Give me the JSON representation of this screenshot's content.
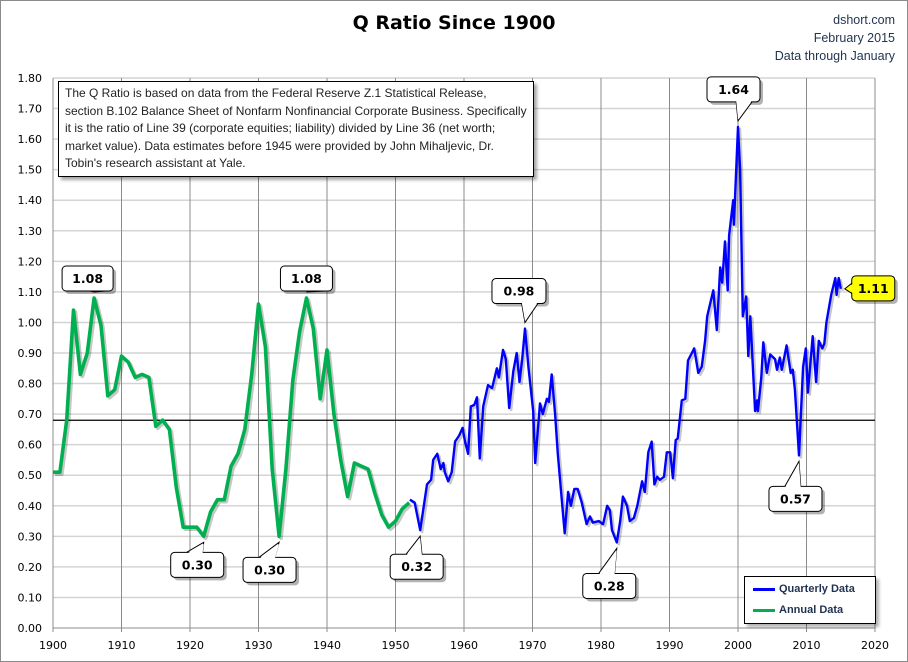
{
  "header": {
    "title": "Q Ratio Since 1900",
    "source": "dshort.com",
    "date": "February 2015",
    "data_through": "Data through January"
  },
  "note": "The Q Ratio is based on data from the Federal Reserve Z.1 Statistical Release, section B.102 Balance Sheet of Nonfarm Nonfinancial Corporate Business. Specifically it is the ratio of Line 39  (corporate equities; liability) divided by Line 36 (net worth; market value).  Data estimates before 1945 were provided by John Mihaljevic, Dr. Tobin's research assistant at Yale.",
  "chart_data": {
    "type": "line",
    "title": "Q Ratio Since 1900",
    "xlim": [
      1900,
      2020
    ],
    "ylim": [
      0,
      1.8
    ],
    "x_ticks": [
      "1900",
      "1910",
      "1920",
      "1930",
      "1940",
      "1950",
      "1960",
      "1970",
      "1980",
      "1990",
      "2000",
      "2010",
      "2020"
    ],
    "y_ticks": [
      "0.00",
      "0.10",
      "0.20",
      "0.30",
      "0.40",
      "0.50",
      "0.60",
      "0.70",
      "0.80",
      "0.90",
      "1.00",
      "1.10",
      "1.20",
      "1.30",
      "1.40",
      "1.50",
      "1.60",
      "1.70",
      "1.80"
    ],
    "grid": true,
    "legend_position": "bottom-right",
    "mean_line": 0.68,
    "series": [
      {
        "name": "Quarterly Data",
        "color": "#0000ff",
        "points": [
          [
            1952.1,
            0.42
          ],
          [
            1952.8,
            0.41
          ],
          [
            1953.6,
            0.32
          ],
          [
            1954.6,
            0.47
          ],
          [
            1955.2,
            0.485
          ],
          [
            1955.5,
            0.55
          ],
          [
            1956.1,
            0.57
          ],
          [
            1956.6,
            0.52
          ],
          [
            1957,
            0.54
          ],
          [
            1957.2,
            0.51
          ],
          [
            1957.7,
            0.48
          ],
          [
            1958.2,
            0.51
          ],
          [
            1958.7,
            0.61
          ],
          [
            1959.3,
            0.63
          ],
          [
            1959.8,
            0.655
          ],
          [
            1960.1,
            0.615
          ],
          [
            1960.6,
            0.57
          ],
          [
            1961,
            0.725
          ],
          [
            1961.5,
            0.73
          ],
          [
            1961.9,
            0.755
          ],
          [
            1962.3,
            0.555
          ],
          [
            1962.8,
            0.725
          ],
          [
            1963.5,
            0.795
          ],
          [
            1964.1,
            0.785
          ],
          [
            1964.8,
            0.85
          ],
          [
            1965.1,
            0.82
          ],
          [
            1965.7,
            0.91
          ],
          [
            1966.1,
            0.88
          ],
          [
            1966.6,
            0.72
          ],
          [
            1967.2,
            0.84
          ],
          [
            1967.7,
            0.9
          ],
          [
            1968.1,
            0.805
          ],
          [
            1968.5,
            0.88
          ],
          [
            1968.9,
            0.98
          ],
          [
            1969.4,
            0.855
          ],
          [
            1970.1,
            0.71
          ],
          [
            1970.4,
            0.54
          ],
          [
            1971.1,
            0.735
          ],
          [
            1971.5,
            0.7
          ],
          [
            1972.1,
            0.75
          ],
          [
            1972.4,
            0.74
          ],
          [
            1972.8,
            0.83
          ],
          [
            1973.3,
            0.7
          ],
          [
            1973.7,
            0.57
          ],
          [
            1974.7,
            0.31
          ],
          [
            1975.2,
            0.445
          ],
          [
            1975.6,
            0.4
          ],
          [
            1976.1,
            0.455
          ],
          [
            1976.6,
            0.455
          ],
          [
            1977.2,
            0.41
          ],
          [
            1977.9,
            0.34
          ],
          [
            1978.4,
            0.365
          ],
          [
            1978.8,
            0.345
          ],
          [
            1979.7,
            0.35
          ],
          [
            1980.3,
            0.34
          ],
          [
            1980.9,
            0.4
          ],
          [
            1981.3,
            0.385
          ],
          [
            1981.6,
            0.32
          ],
          [
            1982.3,
            0.28
          ],
          [
            1982.8,
            0.35
          ],
          [
            1983.2,
            0.43
          ],
          [
            1983.8,
            0.4
          ],
          [
            1984.2,
            0.35
          ],
          [
            1984.8,
            0.36
          ],
          [
            1985.3,
            0.4
          ],
          [
            1986,
            0.48
          ],
          [
            1986.4,
            0.445
          ],
          [
            1986.9,
            0.575
          ],
          [
            1987.4,
            0.61
          ],
          [
            1987.8,
            0.47
          ],
          [
            1988.2,
            0.495
          ],
          [
            1988.6,
            0.485
          ],
          [
            1989.2,
            0.495
          ],
          [
            1989.6,
            0.575
          ],
          [
            1990.1,
            0.575
          ],
          [
            1990.5,
            0.49
          ],
          [
            1990.9,
            0.615
          ],
          [
            1991.2,
            0.62
          ],
          [
            1991.8,
            0.745
          ],
          [
            1992.3,
            0.75
          ],
          [
            1992.7,
            0.875
          ],
          [
            1993.6,
            0.915
          ],
          [
            1994.2,
            0.835
          ],
          [
            1994.7,
            0.855
          ],
          [
            1995.2,
            0.94
          ],
          [
            1995.5,
            1.02
          ],
          [
            1996.4,
            1.105
          ],
          [
            1996.9,
            0.975
          ],
          [
            1997.4,
            1.18
          ],
          [
            1997.7,
            1.13
          ],
          [
            1998.1,
            1.265
          ],
          [
            1998.5,
            1.105
          ],
          [
            1998.7,
            1.285
          ],
          [
            1999.3,
            1.4
          ],
          [
            1999.4,
            1.32
          ],
          [
            2000,
            1.64
          ],
          [
            2000.3,
            1.5
          ],
          [
            2000.7,
            1.02
          ],
          [
            2001.2,
            1.085
          ],
          [
            2001.5,
            0.89
          ],
          [
            2001.8,
            1.02
          ],
          [
            2002.5,
            0.71
          ],
          [
            2002.8,
            0.745
          ],
          [
            2002.9,
            0.71
          ],
          [
            2003.4,
            0.82
          ],
          [
            2003.7,
            0.935
          ],
          [
            2004.2,
            0.835
          ],
          [
            2004.7,
            0.895
          ],
          [
            2005.4,
            0.88
          ],
          [
            2005.7,
            0.845
          ],
          [
            2006.1,
            0.885
          ],
          [
            2006.4,
            0.845
          ],
          [
            2007.1,
            0.925
          ],
          [
            2007.7,
            0.835
          ],
          [
            2008,
            0.845
          ],
          [
            2008.3,
            0.78
          ],
          [
            2008.9,
            0.565
          ],
          [
            2009.5,
            0.855
          ],
          [
            2009.9,
            0.915
          ],
          [
            2010.2,
            0.77
          ],
          [
            2010.9,
            0.955
          ],
          [
            2011.4,
            0.805
          ],
          [
            2011.8,
            0.94
          ],
          [
            2012.3,
            0.915
          ],
          [
            2012.6,
            0.93
          ],
          [
            2012.9,
            1.0
          ],
          [
            2013.6,
            1.09
          ],
          [
            2014.2,
            1.145
          ],
          [
            2014.4,
            1.09
          ],
          [
            2014.7,
            1.145
          ],
          [
            2015,
            1.11
          ]
        ]
      },
      {
        "name": "Annual Data",
        "color": "#00b050",
        "points": [
          [
            1900,
            0.51
          ],
          [
            1901,
            0.51
          ],
          [
            1902,
            0.68
          ],
          [
            1903,
            1.04
          ],
          [
            1904,
            0.83
          ],
          [
            1905,
            0.9
          ],
          [
            1906,
            1.08
          ],
          [
            1907,
            0.99
          ],
          [
            1908,
            0.76
          ],
          [
            1909,
            0.78
          ],
          [
            1910,
            0.89
          ],
          [
            1911,
            0.87
          ],
          [
            1912,
            0.82
          ],
          [
            1913,
            0.83
          ],
          [
            1914,
            0.82
          ],
          [
            1915,
            0.66
          ],
          [
            1916,
            0.68
          ],
          [
            1917,
            0.65
          ],
          [
            1918,
            0.46
          ],
          [
            1919,
            0.33
          ],
          [
            1920,
            0.33
          ],
          [
            1921,
            0.33
          ],
          [
            1922,
            0.3
          ],
          [
            1923,
            0.38
          ],
          [
            1924,
            0.42
          ],
          [
            1925,
            0.42
          ],
          [
            1926,
            0.53
          ],
          [
            1927,
            0.57
          ],
          [
            1928,
            0.65
          ],
          [
            1929,
            0.83
          ],
          [
            1930,
            1.06
          ],
          [
            1931,
            0.92
          ],
          [
            1932,
            0.52
          ],
          [
            1933,
            0.3
          ],
          [
            1934,
            0.52
          ],
          [
            1935,
            0.81
          ],
          [
            1936,
            0.97
          ],
          [
            1937,
            1.08
          ],
          [
            1938,
            0.98
          ],
          [
            1939,
            0.75
          ],
          [
            1940,
            0.91
          ],
          [
            1941,
            0.7
          ],
          [
            1942,
            0.55
          ],
          [
            1943,
            0.43
          ],
          [
            1944,
            0.54
          ],
          [
            1945,
            0.53
          ],
          [
            1946,
            0.52
          ],
          [
            1947,
            0.44
          ],
          [
            1948,
            0.37
          ],
          [
            1949,
            0.33
          ],
          [
            1950,
            0.35
          ],
          [
            1951,
            0.39
          ],
          [
            1952,
            0.41
          ]
        ]
      }
    ],
    "annotations": [
      {
        "label": "1.08",
        "year": 1906,
        "value": 1.08
      },
      {
        "label": "0.30",
        "year": 1922,
        "value": 0.3
      },
      {
        "label": "0.30",
        "year": 1933,
        "value": 0.3
      },
      {
        "label": "1.08",
        "year": 1937,
        "value": 1.08
      },
      {
        "label": "0.32",
        "year": 1953.6,
        "value": 0.32
      },
      {
        "label": "0.98",
        "year": 1968.9,
        "value": 0.98
      },
      {
        "label": "0.28",
        "year": 1982.3,
        "value": 0.28
      },
      {
        "label": "1.64",
        "year": 2000,
        "value": 1.64
      },
      {
        "label": "0.57",
        "year": 2008.9,
        "value": 0.565
      },
      {
        "label": "1.11",
        "year": 2015,
        "value": 1.11,
        "highlight": "#ffff00"
      }
    ]
  }
}
